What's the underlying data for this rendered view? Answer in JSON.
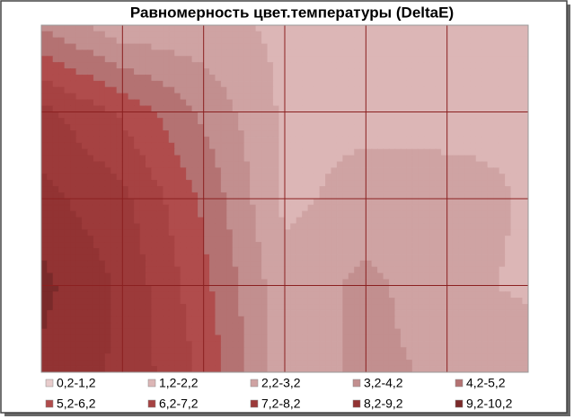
{
  "chart_data": {
    "type": "contour",
    "title": "Равномерность цвет.температуры (DeltaE)",
    "z": [
      [
        4,
        2.5,
        2.5,
        2,
        1.5,
        1.5,
        1.5
      ],
      [
        7.5,
        6,
        4,
        2,
        2,
        1.5,
        2
      ],
      [
        8.5,
        7.5,
        5,
        2,
        2.5,
        3,
        2
      ],
      [
        9.5,
        8,
        5.5,
        2.5,
        3.5,
        2.5,
        2
      ],
      [
        9,
        8,
        6,
        2.5,
        3.5,
        3,
        3
      ]
    ],
    "bands": [
      {
        "name": "0,2-1,2",
        "range": [
          0.2,
          1.2
        ],
        "color": "#e8cccc"
      },
      {
        "name": "1,2-2,2",
        "range": [
          1.2,
          2.2
        ],
        "color": "#dcb6b6"
      },
      {
        "name": "2,2-3,2",
        "range": [
          2.2,
          3.2
        ],
        "color": "#cfa3a3"
      },
      {
        "name": "3,2-4,2",
        "range": [
          3.2,
          4.2
        ],
        "color": "#c28f8f"
      },
      {
        "name": "4,2-5,2",
        "range": [
          4.2,
          5.2
        ],
        "color": "#b47272"
      },
      {
        "name": "5,2-6,2",
        "range": [
          5.2,
          6.2
        ],
        "color": "#b04c4c"
      },
      {
        "name": "6,2-7,2",
        "range": [
          6.2,
          7.2
        ],
        "color": "#a64242"
      },
      {
        "name": "7,2-8,2",
        "range": [
          7.2,
          8.2
        ],
        "color": "#9c3a3a"
      },
      {
        "name": "8,2-9,2",
        "range": [
          8.2,
          9.2
        ],
        "color": "#923333"
      },
      {
        "name": "9,2-10,2",
        "range": [
          9.2,
          10.2
        ],
        "color": "#7a2a2a"
      }
    ],
    "grid": true
  }
}
